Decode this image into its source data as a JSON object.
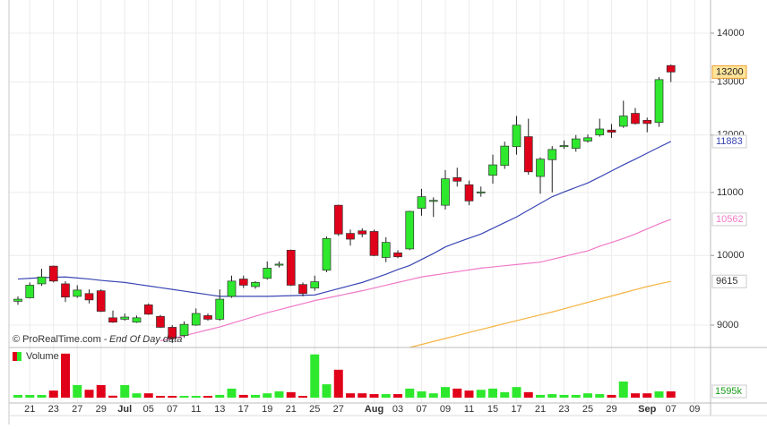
{
  "chart_data": {
    "type": "candlestick",
    "source": "© ProRealTime.com -",
    "source_note": "End Of Day data",
    "log_scale": true,
    "grid": true,
    "ylim": [
      8700,
      14720
    ],
    "yticks": [
      9000,
      10000,
      11000,
      12000,
      13000,
      14000
    ],
    "up_color": "#2ee82e",
    "down_color": "#e0001a",
    "categories": [
      null,
      "21",
      null,
      "23",
      null,
      "27",
      null,
      "29",
      null,
      "Jul",
      null,
      "05",
      null,
      "07",
      null,
      "11",
      null,
      "13",
      null,
      "17",
      null,
      "19",
      null,
      "21",
      null,
      "25",
      null,
      "27",
      null,
      null,
      "Aug",
      null,
      "03",
      null,
      "07",
      null,
      "09",
      null,
      "11",
      null,
      "15",
      null,
      "17",
      null,
      "21",
      null,
      "23",
      null,
      "25",
      null,
      "29",
      null,
      null,
      "Sep",
      null,
      "07",
      null,
      "09"
    ],
    "open": [
      9330,
      9380,
      9580,
      9840,
      9580,
      9400,
      9440,
      9480,
      9100,
      9080,
      9040,
      9280,
      9120,
      8970,
      8860,
      9000,
      9130,
      9080,
      9400,
      9650,
      9540,
      9660,
      9860,
      10080,
      9570,
      9520,
      9780,
      10790,
      10340,
      10380,
      10370,
      9970,
      10040,
      10100,
      10740,
      10860,
      10790,
      11250,
      11130,
      11000,
      11290,
      11460,
      11790,
      11970,
      11270,
      11560,
      11790,
      11760,
      11890,
      12000,
      12090,
      12160,
      12400,
      12270,
      12230,
      13330,
      null,
      null
    ],
    "high": [
      9400,
      9600,
      9800,
      9850,
      9620,
      9560,
      9500,
      9500,
      9200,
      9160,
      9130,
      9300,
      9140,
      9000,
      9050,
      9230,
      9160,
      9500,
      9700,
      9700,
      9620,
      9910,
      9910,
      10090,
      9600,
      9700,
      10290,
      10800,
      10400,
      10420,
      10400,
      10280,
      10080,
      10700,
      11060,
      10920,
      11380,
      11420,
      11200,
      11100,
      11650,
      11880,
      12350,
      12300,
      11600,
      11800,
      11900,
      12000,
      12010,
      12300,
      12200,
      12640,
      12500,
      12320,
      13100,
      13350,
      null,
      null
    ],
    "low": [
      9280,
      9370,
      9550,
      9600,
      9320,
      9380,
      9300,
      9180,
      9030,
      9060,
      9030,
      9140,
      8960,
      8760,
      8830,
      8990,
      9060,
      9060,
      9380,
      9520,
      9510,
      9640,
      9820,
      9550,
      9400,
      9480,
      9750,
      10300,
      10150,
      10280,
      9990,
      9900,
      9960,
      10080,
      10620,
      10600,
      10720,
      11100,
      10790,
      10930,
      11150,
      11400,
      11650,
      11300,
      10980,
      11000,
      11750,
      11700,
      11860,
      11970,
      11950,
      12130,
      12190,
      12050,
      12150,
      13000,
      null,
      null
    ],
    "close": [
      9360,
      9560,
      9680,
      9620,
      9390,
      9490,
      9350,
      9190,
      9040,
      9110,
      9100,
      9150,
      8970,
      8820,
      9010,
      9160,
      9080,
      9360,
      9620,
      9560,
      9600,
      9810,
      9870,
      9560,
      9440,
      9610,
      10260,
      10330,
      10250,
      10330,
      10000,
      10200,
      9980,
      10690,
      10930,
      10870,
      11230,
      11190,
      10860,
      11010,
      11470,
      11800,
      12180,
      11350,
      11570,
      11740,
      11810,
      11930,
      11950,
      12110,
      12050,
      12350,
      12210,
      12210,
      13050,
      13200,
      null,
      null
    ],
    "moving_averages": [
      {
        "color": "#3a46b4",
        "values": [
          9650,
          9660,
          9670,
          9675,
          9680,
          9665,
          9650,
          9630,
          9615,
          9600,
          9575,
          9550,
          9525,
          9500,
          9475,
          9450,
          9425,
          9400,
          9400,
          9400,
          9400,
          9400,
          9405,
          9410,
          9415,
          9420,
          9465,
          9510,
          9555,
          9600,
          9660,
          9720,
          9790,
          9850,
          9940,
          10030,
          10130,
          10200,
          10265,
          10330,
          10420,
          10510,
          10600,
          10710,
          10820,
          10930,
          11010,
          11085,
          11160,
          11260,
          11365,
          11470,
          11570,
          11675,
          11780,
          11883,
          null,
          null
        ]
      },
      {
        "color": "#f07ac8",
        "values": [
          null,
          null,
          null,
          null,
          null,
          null,
          null,
          null,
          null,
          null,
          null,
          null,
          8790,
          8818,
          8857,
          8896,
          8936,
          8975,
          9024,
          9073,
          9122,
          9170,
          9212,
          9255,
          9297,
          9340,
          9375,
          9410,
          9445,
          9480,
          9520,
          9560,
          9600,
          9640,
          9680,
          9706,
          9732,
          9758,
          9784,
          9810,
          9828,
          9846,
          9864,
          9882,
          9900,
          9942,
          9985,
          10028,
          10070,
          10140,
          10200,
          10260,
          10330,
          10410,
          10490,
          10562,
          null,
          null
        ]
      },
      {
        "color": "#f5b342",
        "values": [
          null,
          null,
          null,
          null,
          null,
          null,
          null,
          null,
          null,
          null,
          null,
          null,
          null,
          null,
          null,
          null,
          null,
          null,
          null,
          null,
          null,
          null,
          null,
          null,
          null,
          null,
          null,
          null,
          null,
          null,
          null,
          null,
          null,
          8700,
          8740,
          8780,
          8820,
          8860,
          8900,
          8940,
          8980,
          9020,
          9060,
          9100,
          9140,
          9180,
          9225,
          9270,
          9315,
          9360,
          9405,
          9450,
          9495,
          9540,
          9580,
          9615,
          null,
          null
        ]
      }
    ],
    "volume": {
      "label": "Volume",
      "ylim": [
        0,
        12300
      ],
      "yticks": [
        {
          "value": 1595,
          "label": "1595k"
        }
      ],
      "values": [
        680,
        680,
        680,
        1800,
        11200,
        3200,
        2000,
        3200,
        500,
        3200,
        1100,
        1100,
        450,
        450,
        450,
        450,
        450,
        700,
        2300,
        700,
        700,
        1100,
        1600,
        1400,
        450,
        11000,
        3400,
        7100,
        1100,
        1100,
        900,
        900,
        900,
        2300,
        1600,
        1100,
        2700,
        2300,
        1800,
        2000,
        2300,
        1400,
        2700,
        1400,
        700,
        900,
        700,
        700,
        1100,
        900,
        700,
        4100,
        1100,
        1100,
        1600,
        1595,
        null,
        null
      ]
    }
  }
}
